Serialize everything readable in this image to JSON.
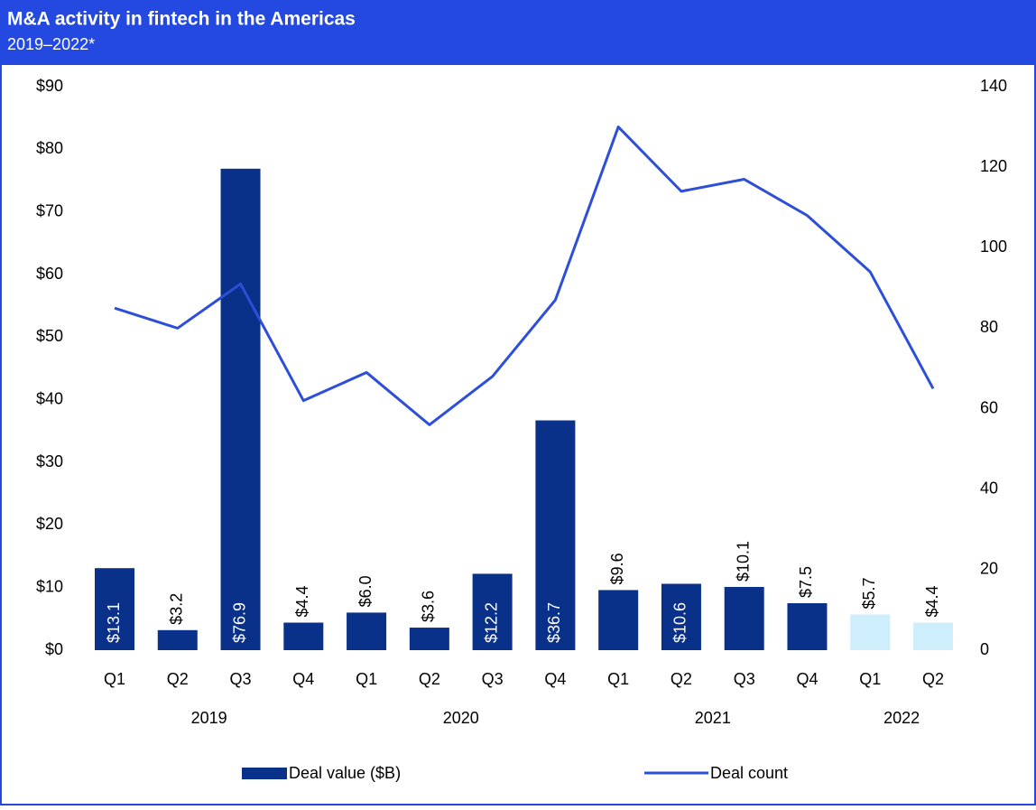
{
  "chart_data": {
    "type": "bar_line",
    "title": "M&A activity in fintech in the Americas",
    "subtitle": "2019–2022*",
    "categories": [
      "Q1",
      "Q2",
      "Q3",
      "Q4",
      "Q1",
      "Q2",
      "Q3",
      "Q4",
      "Q1",
      "Q2",
      "Q3",
      "Q4",
      "Q1",
      "Q2"
    ],
    "year_groups": [
      {
        "label": "2019",
        "count": 4
      },
      {
        "label": "2020",
        "count": 4
      },
      {
        "label": "2021",
        "count": 4
      },
      {
        "label": "2022",
        "count": 2
      }
    ],
    "series": [
      {
        "name": "Deal value ($B)",
        "type": "bar",
        "axis": "y",
        "color": "#0a3189",
        "colors": [
          "#0a3189",
          "#0a3189",
          "#0a3189",
          "#0a3189",
          "#0a3189",
          "#0a3189",
          "#0a3189",
          "#0a3189",
          "#0a3189",
          "#0a3189",
          "#0a3189",
          "#0a3189",
          "#cdeefa",
          "#cdeefa"
        ],
        "values": [
          13.1,
          3.2,
          76.9,
          4.4,
          6.0,
          3.6,
          12.2,
          36.7,
          9.6,
          10.6,
          10.1,
          7.5,
          5.7,
          4.4
        ],
        "value_labels": [
          "$13.1",
          "$3.2",
          "$76.9",
          "$4.4",
          "$6.0",
          "$3.6",
          "$12.2",
          "$36.7",
          "$9.6",
          "$10.6",
          "$10.1",
          "$7.5",
          "$5.7",
          "$4.4"
        ],
        "label_positions": [
          "inside",
          "above",
          "inside",
          "above",
          "above",
          "above",
          "inside",
          "inside",
          "above",
          "inside",
          "above",
          "above",
          "above",
          "above"
        ]
      },
      {
        "name": "Deal count",
        "type": "line",
        "axis": "y2",
        "color": "#2d4fd8",
        "values": [
          85,
          80,
          91,
          62,
          69,
          56,
          68,
          87,
          130,
          114,
          117,
          108,
          94,
          65
        ]
      }
    ],
    "ylim": [
      0,
      90
    ],
    "yticks": [
      {
        "value": 0,
        "label": "$0"
      },
      {
        "value": 10,
        "label": "$10"
      },
      {
        "value": 20,
        "label": "$20"
      },
      {
        "value": 30,
        "label": "$30"
      },
      {
        "value": 40,
        "label": "$40"
      },
      {
        "value": 50,
        "label": "$50"
      },
      {
        "value": 60,
        "label": "$60"
      },
      {
        "value": 70,
        "label": "$70"
      },
      {
        "value": 80,
        "label": "$80"
      },
      {
        "value": 90,
        "label": "$90"
      }
    ],
    "y2lim": [
      0,
      140
    ],
    "y2ticks": [
      0,
      20,
      40,
      60,
      80,
      100,
      120,
      140
    ],
    "grid": false,
    "legend": "bottom"
  }
}
